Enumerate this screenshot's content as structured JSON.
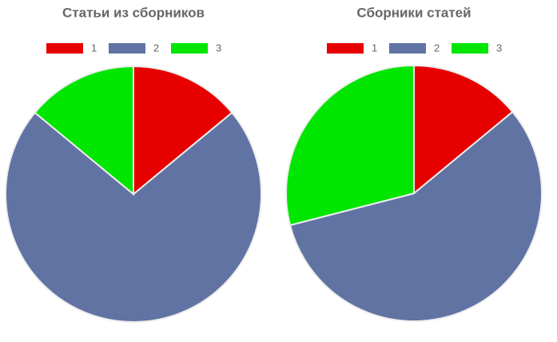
{
  "chart_data": [
    {
      "type": "pie",
      "title": "Статьи из сборников",
      "categories": [
        "1",
        "2",
        "3"
      ],
      "values": [
        14,
        72,
        14
      ],
      "colors": [
        "#e60000",
        "#6173a3",
        "#00e600"
      ]
    },
    {
      "type": "pie",
      "title": "Сборники статей",
      "categories": [
        "1",
        "2",
        "3"
      ],
      "values": [
        14,
        57,
        29
      ],
      "colors": [
        "#e60000",
        "#6173a3",
        "#00e600"
      ]
    }
  ]
}
